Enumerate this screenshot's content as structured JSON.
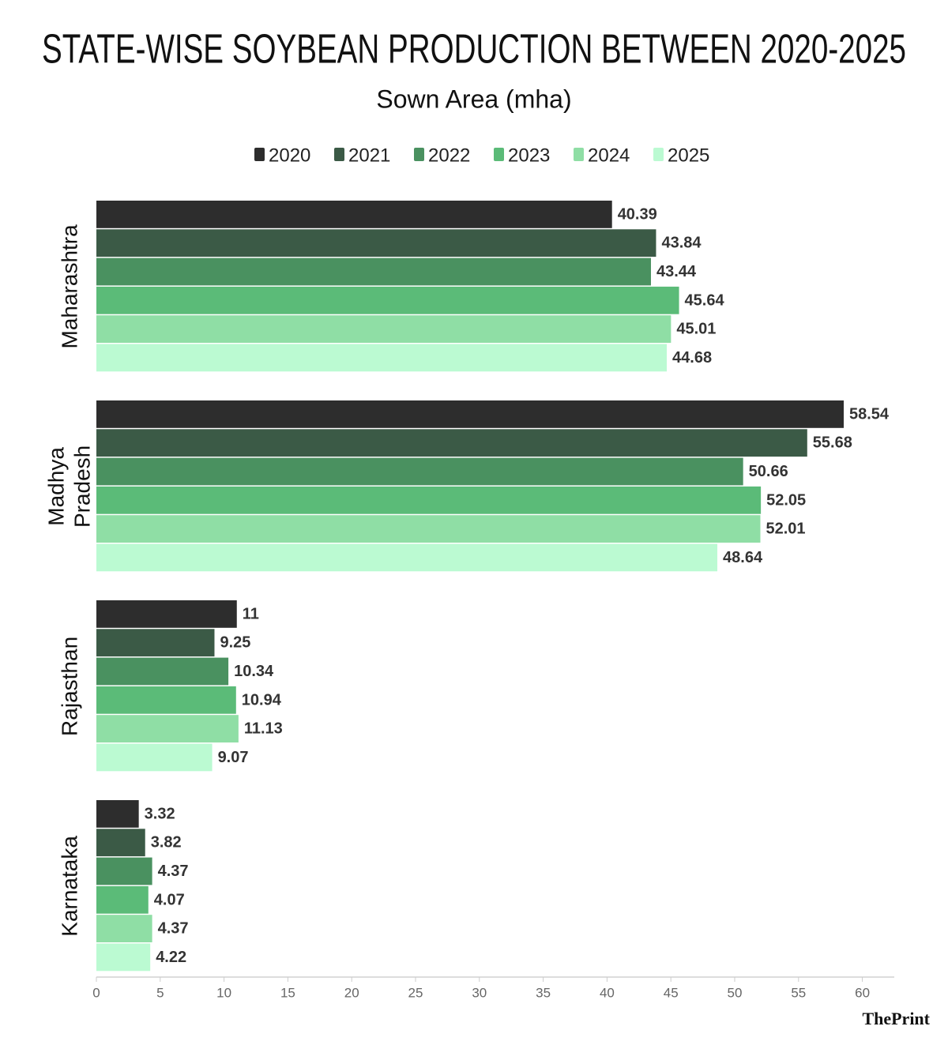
{
  "chart_data": {
    "type": "bar",
    "orientation": "horizontal",
    "title": "STATE-WISE SOYBEAN PRODUCTION BETWEEN 2020-2025",
    "subtitle": "Sown Area (mha)",
    "credit": "ThePrint",
    "categories": [
      "Maharashtra",
      "Madhya Pradesh",
      "Rajasthan",
      "Karnataka"
    ],
    "series": [
      {
        "name": "2020",
        "color": "#2d2d2d",
        "values": [
          40.39,
          58.54,
          11,
          3.32
        ]
      },
      {
        "name": "2021",
        "color": "#3b5a46",
        "values": [
          43.84,
          55.68,
          9.25,
          3.82
        ]
      },
      {
        "name": "2022",
        "color": "#4a9160",
        "values": [
          43.44,
          50.66,
          10.34,
          4.37
        ]
      },
      {
        "name": "2023",
        "color": "#5bbb78",
        "values": [
          45.64,
          52.05,
          10.94,
          4.07
        ]
      },
      {
        "name": "2024",
        "color": "#8fdea5",
        "values": [
          45.01,
          52.01,
          11.13,
          4.37
        ]
      },
      {
        "name": "2025",
        "color": "#bbfad2",
        "values": [
          44.68,
          48.64,
          9.07,
          4.22
        ]
      }
    ],
    "xlim": [
      0,
      62.5
    ],
    "xticks": [
      0,
      5,
      10,
      15,
      20,
      25,
      30,
      35,
      40,
      45,
      50,
      55,
      60
    ],
    "grid": false,
    "legend": "top"
  }
}
